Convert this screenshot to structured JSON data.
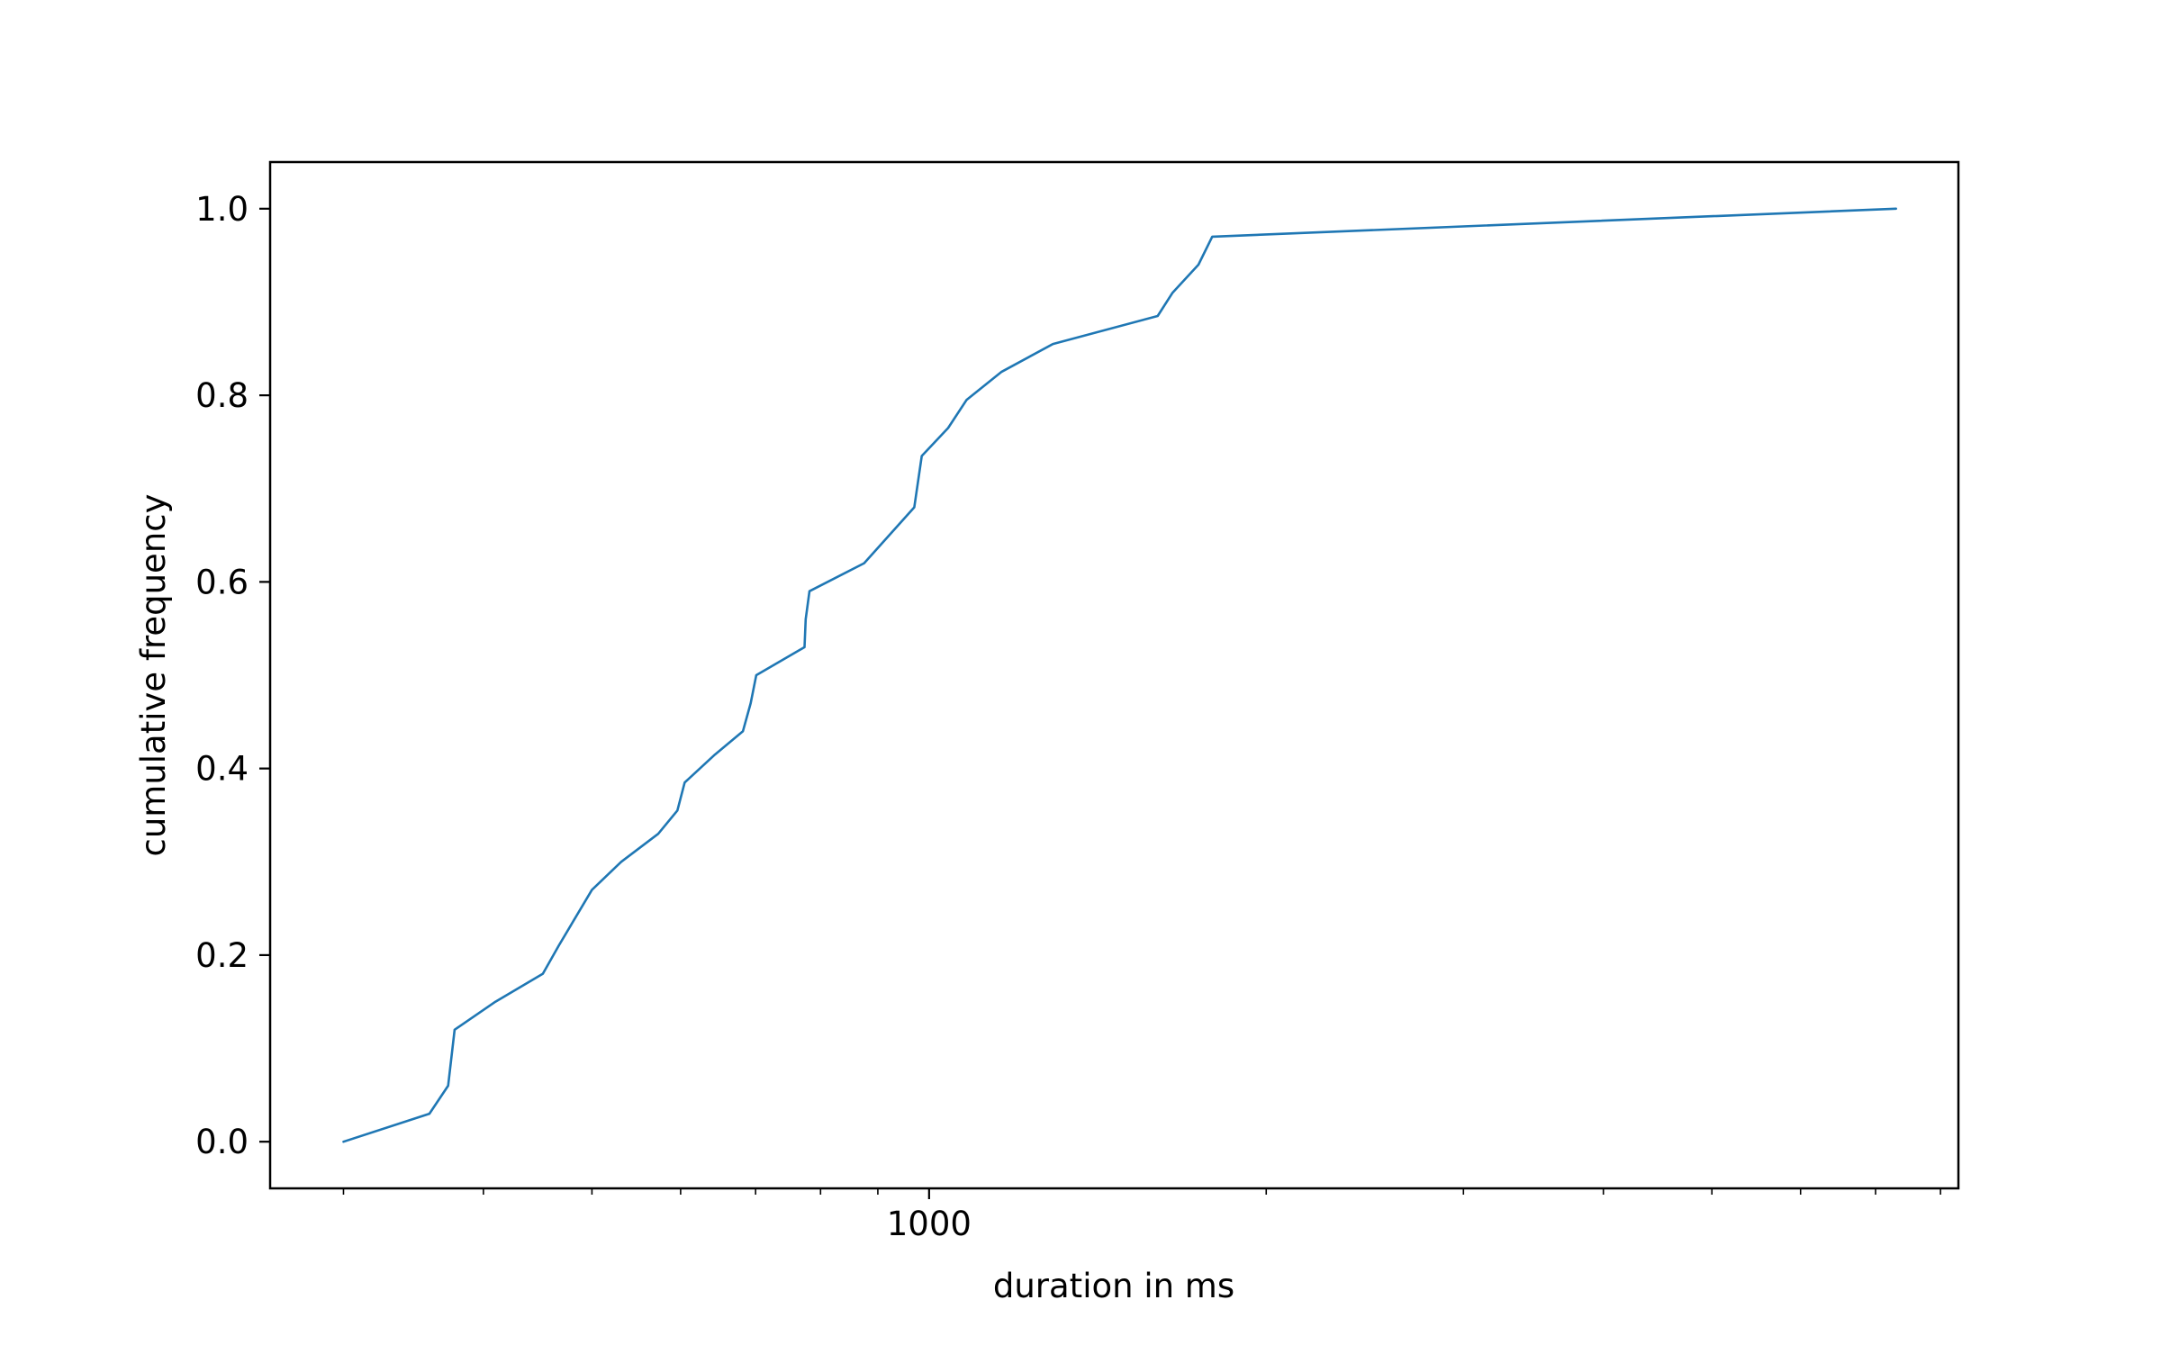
{
  "colors": {
    "series": "#1f77b4",
    "axes": "#000000",
    "background": "#ffffff"
  },
  "chart_data": {
    "type": "line",
    "title": "",
    "xlabel": "duration in ms",
    "ylabel": "cumulative frequency",
    "xscale": "log",
    "xlim": [
      258,
      8300
    ],
    "ylim": [
      -0.05,
      1.05
    ],
    "grid": false,
    "legend": "none",
    "x_tick_labels": [
      {
        "value": 1000,
        "label": "1000"
      }
    ],
    "x_minor_ticks": [
      300,
      400,
      500,
      600,
      700,
      800,
      900,
      2000,
      3000,
      4000,
      5000,
      6000,
      7000,
      8000
    ],
    "y_ticks": [
      {
        "value": 0.0,
        "label": "0.0"
      },
      {
        "value": 0.2,
        "label": "0.2"
      },
      {
        "value": 0.4,
        "label": "0.4"
      },
      {
        "value": 0.6,
        "label": "0.6"
      },
      {
        "value": 0.8,
        "label": "0.8"
      },
      {
        "value": 1.0,
        "label": "1.0"
      }
    ],
    "series": [
      {
        "x": [
          300,
          358,
          372,
          377,
          410,
          452,
          467,
          500,
          531,
          573,
          596,
          605,
          644,
          682,
          693,
          701,
          774,
          776,
          782,
          875,
          970,
          985,
          1040,
          1080,
          1160,
          1290,
          1600,
          1650,
          1740,
          1790,
          7300
        ],
        "y": [
          0.0,
          0.03,
          0.06,
          0.12,
          0.15,
          0.18,
          0.21,
          0.27,
          0.3,
          0.33,
          0.355,
          0.385,
          0.415,
          0.44,
          0.47,
          0.5,
          0.53,
          0.56,
          0.59,
          0.62,
          0.68,
          0.735,
          0.765,
          0.795,
          0.825,
          0.855,
          0.885,
          0.91,
          0.94,
          0.97,
          1.0
        ]
      }
    ]
  }
}
